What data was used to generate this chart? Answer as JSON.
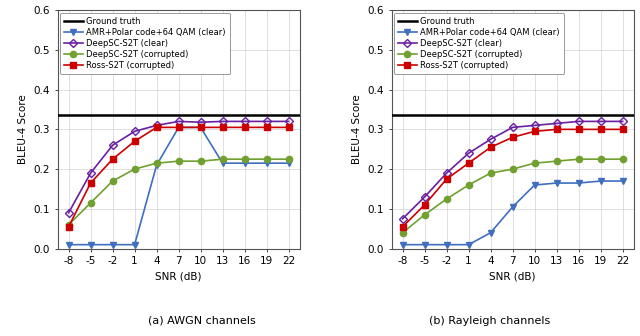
{
  "snr": [
    -8,
    -5,
    -2,
    1,
    4,
    7,
    10,
    13,
    16,
    19,
    22
  ],
  "ground_truth": 0.335,
  "awgn": {
    "amr_polar": [
      0.01,
      0.01,
      0.01,
      0.01,
      0.21,
      0.305,
      0.305,
      0.215,
      0.215,
      0.215,
      0.215
    ],
    "deepsc_clear": [
      0.09,
      0.19,
      0.26,
      0.295,
      0.31,
      0.32,
      0.318,
      0.32,
      0.32,
      0.32,
      0.32
    ],
    "deepsc_corrupted": [
      0.06,
      0.115,
      0.17,
      0.2,
      0.215,
      0.22,
      0.22,
      0.225,
      0.225,
      0.225,
      0.225
    ],
    "ross_corrupted": [
      0.055,
      0.165,
      0.225,
      0.27,
      0.305,
      0.305,
      0.305,
      0.305,
      0.305,
      0.305,
      0.305
    ]
  },
  "rayleigh": {
    "amr_polar": [
      0.01,
      0.01,
      0.01,
      0.01,
      0.04,
      0.105,
      0.16,
      0.165,
      0.165,
      0.17,
      0.17
    ],
    "deepsc_clear": [
      0.075,
      0.13,
      0.19,
      0.24,
      0.275,
      0.305,
      0.31,
      0.315,
      0.32,
      0.32,
      0.32
    ],
    "deepsc_corrupted": [
      0.04,
      0.085,
      0.125,
      0.16,
      0.19,
      0.2,
      0.215,
      0.22,
      0.225,
      0.225,
      0.225
    ],
    "ross_corrupted": [
      0.055,
      0.11,
      0.175,
      0.215,
      0.255,
      0.28,
      0.295,
      0.3,
      0.3,
      0.3,
      0.3
    ]
  },
  "colors": {
    "ground_truth": "#000000",
    "amr_polar": "#3f6fbe",
    "deepsc_clear": "#6a1fa0",
    "deepsc_corrupted": "#70a030",
    "ross_corrupted": "#cc0000"
  },
  "legend_labels": [
    "Ground truth",
    "AMR+Polar code+64 QAM (clear)",
    "DeepSC-S2T (clear)",
    "DeepSC-S2T (corrupted)",
    "Ross-S2T (corrupted)"
  ],
  "ylabel": "BLEU-4 Score",
  "xlabel": "SNR (dB)",
  "ylim": [
    0.0,
    0.6
  ],
  "yticks": [
    0.0,
    0.1,
    0.2,
    0.3,
    0.4,
    0.5,
    0.6
  ],
  "subtitle_a": "(a) AWGN channels",
  "subtitle_b": "(b) Rayleigh channels",
  "fontsize": 7.5
}
